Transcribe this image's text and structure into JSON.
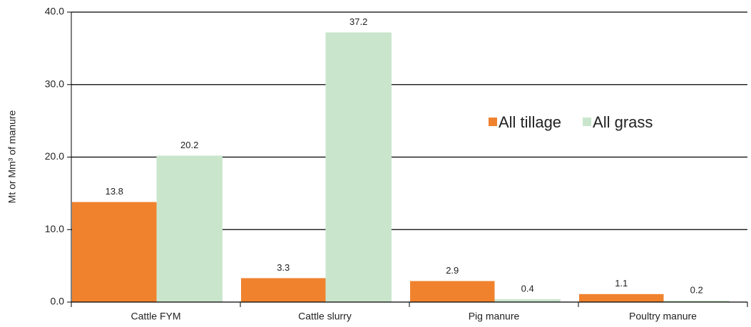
{
  "chart_data": {
    "type": "bar",
    "y_label": "Mt or Mm³ of manure",
    "categories": [
      "Cattle FYM",
      "Cattle slurry",
      "Pig manure",
      "Poultry manure"
    ],
    "series": [
      {
        "name": "All tillage",
        "color": "#f0822e",
        "values": [
          13.8,
          3.3,
          2.9,
          1.1
        ]
      },
      {
        "name": "All grass",
        "color": "#c9e6cc",
        "values": [
          20.2,
          37.2,
          0.4,
          0.2
        ]
      }
    ],
    "ylim": [
      0,
      40
    ],
    "yticks": [
      {
        "value": 0,
        "label": "0.0"
      },
      {
        "value": 10,
        "label": "10.0"
      },
      {
        "value": 20,
        "label": "20.0"
      },
      {
        "value": 30,
        "label": "30.0"
      },
      {
        "value": 40,
        "label": "40.0"
      }
    ],
    "grid": true,
    "legend": "right"
  }
}
